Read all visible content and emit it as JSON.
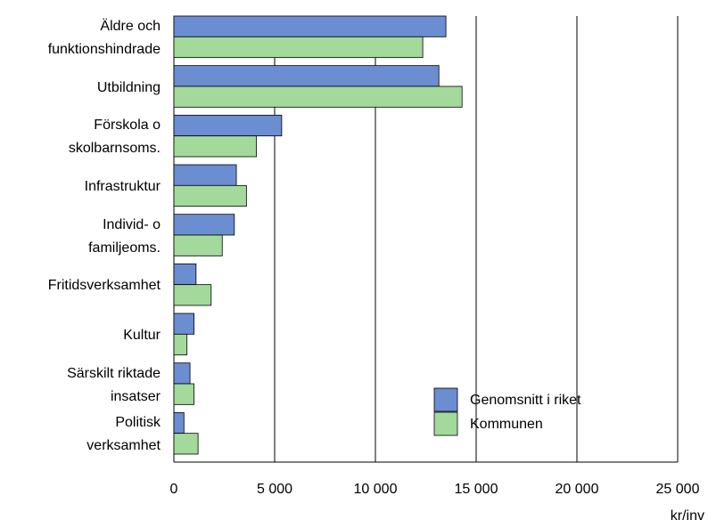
{
  "chart_data": {
    "type": "hbar",
    "categories": [
      "Äldre och\nfunktionshindrade",
      "Utbildning",
      "Förskola o\nskolbarnsoms.",
      "Infrastruktur",
      "Individ- o\nfamiljeoms.",
      "Fritidsverksamhet",
      "Kultur",
      "Särskilt riktade\ninsatser",
      "Politisk\nverksamhet"
    ],
    "series": [
      {
        "name": "Genomsnitt i riket",
        "color": "#6b8dd1",
        "values": [
          13500,
          13150,
          5350,
          3100,
          3000,
          1100,
          1000,
          800,
          500
        ]
      },
      {
        "name": "Kommunen",
        "color": "#a3d99b",
        "values": [
          12350,
          14300,
          4100,
          3600,
          2400,
          1850,
          650,
          1000,
          1200
        ]
      }
    ],
    "xlim": [
      0,
      25000
    ],
    "xticks": [
      0,
      {
        "value": 5000,
        "label": "5 000"
      },
      {
        "value": 10000,
        "label": "10 000"
      },
      {
        "value": 15000,
        "label": "15 000"
      },
      {
        "value": 20000,
        "label": "20 000"
      },
      {
        "value": 25000,
        "label": "25 000"
      }
    ],
    "x_label": "kr/inv",
    "grid": true,
    "legend": "lower right"
  }
}
